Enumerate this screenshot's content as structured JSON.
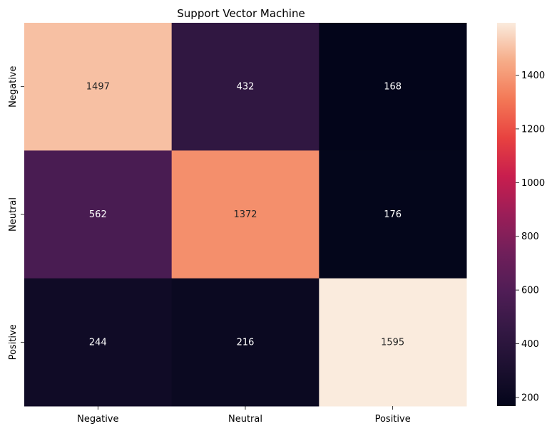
{
  "chart_data": {
    "type": "heatmap",
    "title": "Support Vector Machine",
    "xlabel": "",
    "ylabel": "",
    "x_categories": [
      "Negative",
      "Neutral",
      "Positive"
    ],
    "y_categories": [
      "Negative",
      "Neutral",
      "Positive"
    ],
    "values": [
      [
        1497,
        432,
        168
      ],
      [
        562,
        1372,
        176
      ],
      [
        244,
        216,
        1595
      ]
    ],
    "colormap": "rocket",
    "colorbar": {
      "min": 168,
      "max": 1595,
      "ticks": [
        200,
        400,
        600,
        800,
        1000,
        1200,
        1400
      ]
    },
    "grid": false,
    "legend": "none"
  }
}
